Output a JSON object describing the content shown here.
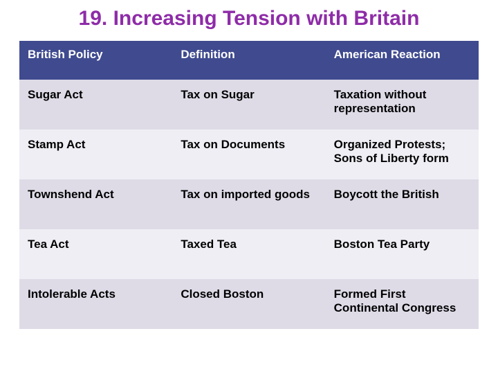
{
  "title": "19. Increasing Tension with Britain",
  "title_color": "#8e2ca8",
  "title_fontsize": 30,
  "table": {
    "header_bg": "#3f4a8f",
    "header_text_color": "#ffffff",
    "row_odd_bg": "#dedbe7",
    "row_even_bg": "#efeef4",
    "cell_text_color": "#000000",
    "header_fontsize": 17,
    "cell_fontsize": 17,
    "columns": [
      "British Policy",
      "Definition",
      "American Reaction"
    ],
    "rows": [
      [
        "Sugar Act",
        "Tax on Sugar",
        "Taxation without representation"
      ],
      [
        "Stamp Act",
        "Tax on Documents",
        "Organized Protests; Sons of Liberty form"
      ],
      [
        "Townshend Act",
        "Tax on imported goods",
        "Boycott the British"
      ],
      [
        "Tea Act",
        "Taxed Tea",
        "Boston Tea Party"
      ],
      [
        "Intolerable Acts",
        "Closed Boston",
        "Formed First Continental Congress"
      ]
    ]
  }
}
